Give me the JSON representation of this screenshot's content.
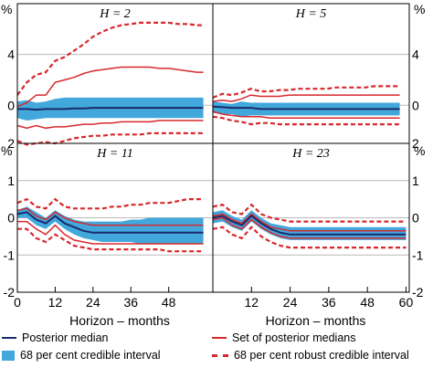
{
  "chart_data": [
    {
      "type": "line",
      "panel_title": "H = 2",
      "x": [
        0,
        3,
        6,
        9,
        12,
        15,
        18,
        21,
        24,
        27,
        30,
        33,
        36,
        39,
        42,
        45,
        48,
        51,
        54,
        57,
        59
      ],
      "series": [
        {
          "name": "Posterior median",
          "values": [
            -0.3,
            -0.3,
            -0.35,
            -0.3,
            -0.3,
            -0.3,
            -0.25,
            -0.25,
            -0.2,
            -0.2,
            -0.2,
            -0.2,
            -0.2,
            -0.2,
            -0.2,
            -0.2,
            -0.2,
            -0.2,
            -0.2,
            -0.2,
            -0.2
          ]
        },
        {
          "name": "68 per cent credible interval upper",
          "values": [
            0.3,
            0.4,
            0.2,
            0.3,
            0.5,
            0.6,
            0.6,
            0.6,
            0.6,
            0.6,
            0.6,
            0.6,
            0.6,
            0.6,
            0.6,
            0.6,
            0.6,
            0.6,
            0.6,
            0.6,
            0.6
          ]
        },
        {
          "name": "68 per cent credible interval lower",
          "values": [
            -1.0,
            -1.2,
            -1.1,
            -1.0,
            -1.0,
            -1.0,
            -1.0,
            -1.0,
            -1.0,
            -1.0,
            -1.0,
            -1.0,
            -1.0,
            -1.0,
            -1.0,
            -1.0,
            -1.0,
            -1.0,
            -1.0,
            -1.0,
            -1.0
          ]
        },
        {
          "name": "Set of posterior medians upper",
          "values": [
            -0.1,
            0.2,
            0.8,
            0.8,
            1.8,
            2.0,
            2.2,
            2.5,
            2.7,
            2.8,
            2.9,
            3.0,
            3.0,
            3.0,
            3.0,
            2.9,
            2.9,
            2.8,
            2.7,
            2.6,
            2.6
          ]
        },
        {
          "name": "Set of posterior medians lower",
          "values": [
            -1.6,
            -1.8,
            -1.6,
            -1.8,
            -1.7,
            -1.7,
            -1.6,
            -1.5,
            -1.5,
            -1.4,
            -1.4,
            -1.3,
            -1.3,
            -1.3,
            -1.3,
            -1.2,
            -1.2,
            -1.2,
            -1.2,
            -1.2,
            -1.2
          ]
        },
        {
          "name": "68 per cent robust credible interval upper",
          "values": [
            0.8,
            1.8,
            2.4,
            2.6,
            3.5,
            3.8,
            4.3,
            4.8,
            5.4,
            5.8,
            6.1,
            6.3,
            6.4,
            6.5,
            6.5,
            6.5,
            6.5,
            6.4,
            6.4,
            6.3,
            6.3
          ]
        },
        {
          "name": "68 per cent robust credible interval lower",
          "values": [
            -2.8,
            -3.1,
            -3.0,
            -2.9,
            -3.0,
            -2.8,
            -2.6,
            -2.5,
            -2.4,
            -2.4,
            -2.3,
            -2.3,
            -2.3,
            -2.3,
            -2.2,
            -2.2,
            -2.2,
            -2.2,
            -2.2,
            -2.2,
            -2.2
          ]
        }
      ],
      "ylim": [
        -3,
        8
      ],
      "yticks": [
        0,
        4
      ]
    },
    {
      "type": "line",
      "panel_title": "H = 5",
      "x": [
        0,
        3,
        6,
        9,
        12,
        15,
        18,
        21,
        24,
        27,
        30,
        33,
        36,
        39,
        42,
        45,
        48,
        51,
        54,
        57,
        59
      ],
      "series": [
        {
          "name": "Posterior median",
          "values": [
            -0.1,
            -0.15,
            -0.2,
            -0.2,
            -0.2,
            -0.3,
            -0.3,
            -0.3,
            -0.3,
            -0.3,
            -0.3,
            -0.3,
            -0.3,
            -0.3,
            -0.3,
            -0.3,
            -0.3,
            -0.3,
            -0.3,
            -0.3,
            -0.3
          ]
        },
        {
          "name": "68 per cent credible interval upper",
          "values": [
            0.3,
            0.2,
            0.1,
            0.3,
            0.2,
            0.2,
            0.2,
            0.2,
            0.2,
            0.2,
            0.2,
            0.2,
            0.2,
            0.2,
            0.2,
            0.2,
            0.2,
            0.2,
            0.2,
            0.2,
            0.2
          ]
        },
        {
          "name": "68 per cent credible interval lower",
          "values": [
            -0.6,
            -0.7,
            -0.7,
            -0.9,
            -0.8,
            -0.8,
            -0.8,
            -0.8,
            -0.8,
            -0.8,
            -0.8,
            -0.8,
            -0.8,
            -0.8,
            -0.8,
            -0.8,
            -0.8,
            -0.8,
            -0.8,
            -0.8,
            -0.8
          ]
        },
        {
          "name": "Set of posterior medians upper",
          "values": [
            0.3,
            0.4,
            0.3,
            0.5,
            0.8,
            0.7,
            0.7,
            0.7,
            0.8,
            0.8,
            0.8,
            0.8,
            0.8,
            0.8,
            0.8,
            0.8,
            0.8,
            0.8,
            0.8,
            0.8,
            0.8
          ]
        },
        {
          "name": "Set of posterior medians lower",
          "values": [
            -0.5,
            -0.7,
            -0.8,
            -0.9,
            -0.9,
            -0.9,
            -1.0,
            -1.0,
            -1.0,
            -1.0,
            -1.0,
            -1.0,
            -1.0,
            -1.0,
            -1.0,
            -1.0,
            -1.0,
            -1.0,
            -1.0,
            -1.0,
            -1.0
          ]
        },
        {
          "name": "68 per cent robust credible interval upper",
          "values": [
            0.6,
            0.9,
            0.8,
            1.0,
            1.3,
            1.1,
            1.1,
            1.2,
            1.2,
            1.3,
            1.3,
            1.3,
            1.3,
            1.4,
            1.4,
            1.4,
            1.4,
            1.5,
            1.5,
            1.5,
            1.5
          ]
        },
        {
          "name": "68 per cent robust credible interval lower",
          "values": [
            -0.9,
            -1.0,
            -1.2,
            -1.3,
            -1.5,
            -1.4,
            -1.4,
            -1.5,
            -1.5,
            -1.5,
            -1.5,
            -1.5,
            -1.5,
            -1.5,
            -1.5,
            -1.5,
            -1.5,
            -1.5,
            -1.5,
            -1.5,
            -1.5
          ]
        }
      ],
      "ylim": [
        -3,
        8
      ],
      "yticks": [
        0,
        4
      ]
    },
    {
      "type": "line",
      "panel_title": "H = 11",
      "x": [
        0,
        3,
        6,
        9,
        12,
        15,
        18,
        21,
        24,
        27,
        30,
        33,
        36,
        39,
        42,
        45,
        48,
        51,
        54,
        57,
        59
      ],
      "series": [
        {
          "name": "Posterior median",
          "values": [
            0.1,
            0.15,
            -0.05,
            -0.15,
            0.05,
            -0.15,
            -0.25,
            -0.35,
            -0.4,
            -0.4,
            -0.4,
            -0.4,
            -0.4,
            -0.4,
            -0.4,
            -0.4,
            -0.4,
            -0.4,
            -0.4,
            -0.4,
            -0.4
          ]
        },
        {
          "name": "68 per cent credible interval upper",
          "values": [
            0.2,
            0.3,
            0.15,
            0.0,
            0.2,
            0.05,
            -0.05,
            -0.1,
            -0.1,
            -0.1,
            -0.1,
            -0.1,
            -0.05,
            -0.05,
            0.0,
            0.0,
            0.0,
            0.0,
            0.0,
            0.0,
            0.0
          ]
        },
        {
          "name": "68 per cent credible interval lower",
          "values": [
            0.0,
            0.0,
            -0.2,
            -0.3,
            -0.1,
            -0.3,
            -0.45,
            -0.55,
            -0.6,
            -0.65,
            -0.65,
            -0.65,
            -0.65,
            -0.7,
            -0.7,
            -0.7,
            -0.7,
            -0.7,
            -0.7,
            -0.7,
            -0.7
          ]
        },
        {
          "name": "Set of posterior medians upper",
          "values": [
            0.2,
            0.25,
            0.05,
            -0.05,
            0.15,
            0.0,
            -0.1,
            -0.15,
            -0.2,
            -0.2,
            -0.2,
            -0.2,
            -0.2,
            -0.2,
            -0.2,
            -0.2,
            -0.2,
            -0.2,
            -0.2,
            -0.2,
            -0.2
          ]
        },
        {
          "name": "Set of posterior medians lower",
          "values": [
            -0.1,
            -0.1,
            -0.3,
            -0.45,
            -0.2,
            -0.45,
            -0.6,
            -0.65,
            -0.7,
            -0.7,
            -0.7,
            -0.7,
            -0.7,
            -0.7,
            -0.7,
            -0.7,
            -0.7,
            -0.7,
            -0.7,
            -0.7,
            -0.7
          ]
        },
        {
          "name": "68 per cent robust credible interval upper",
          "values": [
            0.4,
            0.5,
            0.3,
            0.25,
            0.5,
            0.3,
            0.25,
            0.25,
            0.25,
            0.25,
            0.3,
            0.3,
            0.35,
            0.35,
            0.4,
            0.4,
            0.4,
            0.45,
            0.5,
            0.5,
            0.5
          ]
        },
        {
          "name": "68 per cent robust credible interval lower",
          "values": [
            -0.3,
            -0.3,
            -0.55,
            -0.65,
            -0.45,
            -0.6,
            -0.75,
            -0.8,
            -0.85,
            -0.85,
            -0.85,
            -0.85,
            -0.85,
            -0.85,
            -0.85,
            -0.85,
            -0.9,
            -0.9,
            -0.9,
            -0.9,
            -0.9
          ]
        }
      ],
      "ylim": [
        -2,
        2
      ],
      "yticks": [
        -1,
        0,
        1
      ]
    },
    {
      "type": "line",
      "panel_title": "H = 23",
      "x": [
        0,
        3,
        6,
        9,
        12,
        15,
        18,
        21,
        24,
        27,
        30,
        33,
        36,
        39,
        42,
        45,
        48,
        51,
        54,
        57,
        60
      ],
      "series": [
        {
          "name": "Posterior median",
          "values": [
            0.0,
            0.05,
            -0.1,
            -0.2,
            0.05,
            -0.15,
            -0.3,
            -0.4,
            -0.45,
            -0.45,
            -0.45,
            -0.45,
            -0.45,
            -0.45,
            -0.45,
            -0.45,
            -0.45,
            -0.45,
            -0.45,
            -0.45,
            -0.45
          ]
        },
        {
          "name": "68 per cent credible interval upper",
          "values": [
            0.15,
            0.2,
            0.05,
            -0.05,
            0.2,
            0.0,
            -0.15,
            -0.2,
            -0.25,
            -0.25,
            -0.25,
            -0.25,
            -0.25,
            -0.25,
            -0.25,
            -0.25,
            -0.25,
            -0.25,
            -0.25,
            -0.25,
            -0.25
          ]
        },
        {
          "name": "68 per cent credible interval lower",
          "values": [
            -0.15,
            -0.1,
            -0.25,
            -0.35,
            -0.1,
            -0.3,
            -0.45,
            -0.55,
            -0.6,
            -0.6,
            -0.6,
            -0.6,
            -0.6,
            -0.6,
            -0.6,
            -0.6,
            -0.6,
            -0.6,
            -0.6,
            -0.6,
            -0.6
          ]
        },
        {
          "name": "Set of posterior medians upper",
          "values": [
            0.05,
            0.1,
            -0.05,
            -0.15,
            0.1,
            -0.1,
            -0.25,
            -0.3,
            -0.35,
            -0.35,
            -0.35,
            -0.35,
            -0.35,
            -0.35,
            -0.35,
            -0.35,
            -0.35,
            -0.35,
            -0.35,
            -0.35,
            -0.35
          ]
        },
        {
          "name": "Set of posterior medians lower",
          "values": [
            -0.05,
            0.0,
            -0.2,
            -0.3,
            -0.05,
            -0.25,
            -0.4,
            -0.5,
            -0.55,
            -0.55,
            -0.55,
            -0.55,
            -0.55,
            -0.55,
            -0.55,
            -0.55,
            -0.55,
            -0.55,
            -0.55,
            -0.55,
            -0.55
          ]
        },
        {
          "name": "68 per cent robust credible interval upper",
          "values": [
            0.3,
            0.35,
            0.15,
            0.1,
            0.35,
            0.1,
            0.0,
            -0.05,
            -0.1,
            -0.1,
            -0.1,
            -0.1,
            -0.1,
            -0.1,
            -0.1,
            -0.1,
            -0.1,
            -0.1,
            -0.1,
            -0.1,
            -0.1
          ]
        },
        {
          "name": "68 per cent robust credible interval lower",
          "values": [
            -0.3,
            -0.25,
            -0.45,
            -0.55,
            -0.25,
            -0.5,
            -0.65,
            -0.75,
            -0.8,
            -0.8,
            -0.8,
            -0.8,
            -0.8,
            -0.8,
            -0.8,
            -0.8,
            -0.8,
            -0.8,
            -0.8,
            -0.8,
            -0.8
          ]
        }
      ],
      "ylim": [
        -2,
        2
      ],
      "yticks": [
        -1,
        0,
        1
      ]
    }
  ],
  "axes": {
    "unit_left": "%",
    "unit_right": "%",
    "top_yticks": [
      "4",
      "0"
    ],
    "bottom_yticks": [
      "2",
      "1",
      "0",
      "-1",
      "-2"
    ],
    "left_xticks": [
      "0",
      "12",
      "24",
      "36",
      "48"
    ],
    "right_xticks": [
      "12",
      "24",
      "36",
      "48",
      "60"
    ],
    "xlabel_left": "Horizon – months",
    "xlabel_right": "Horizon – months"
  },
  "legend": {
    "posterior_median": "Posterior median",
    "credible_interval": "68 per cent credible interval",
    "set_of_medians": "Set of posterior medians",
    "robust_interval": "68 per cent robust credible interval"
  },
  "colors": {
    "median": "#1b2a6b",
    "band": "#42a8dc",
    "red": "#d7282d",
    "grid": "#b9b9b9"
  }
}
